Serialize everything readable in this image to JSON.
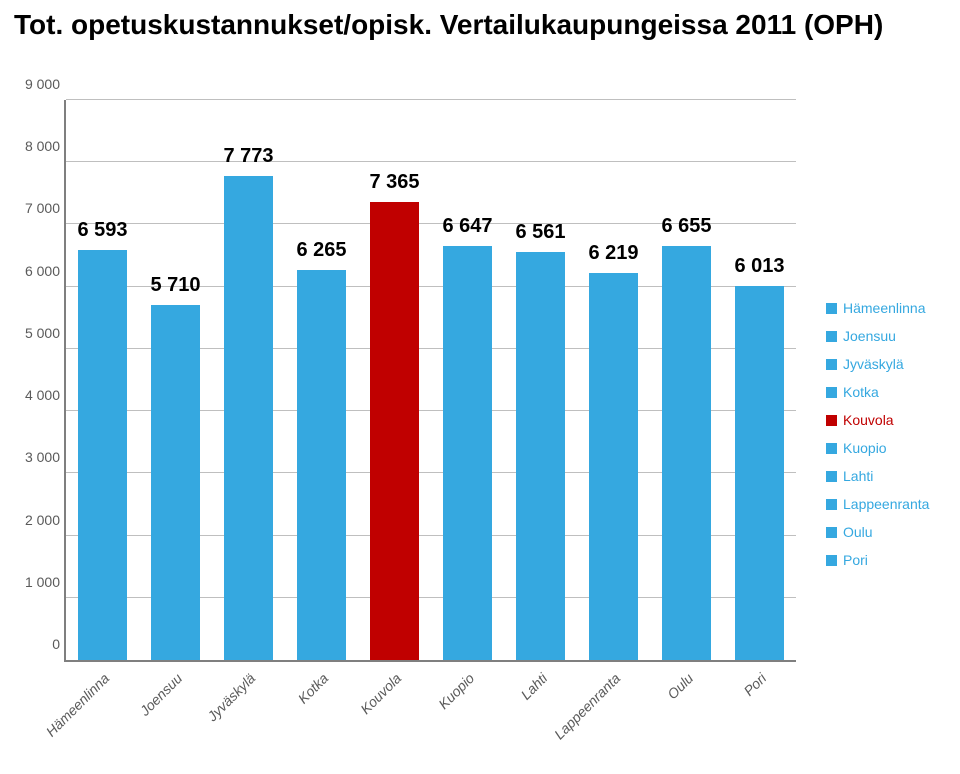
{
  "title": "Tot. opetuskustannukset/opisk. Vertailukaupungeissa 2011 (OPH)",
  "chart": {
    "type": "bar",
    "background_color": "#ffffff",
    "axis_color": "#7f7f7f",
    "grid_color": "#bfbfbf",
    "text_color": "#5a5a5a",
    "title_fontsize": 28,
    "label_fontsize": 14,
    "value_label_fontsize": 20,
    "ylim": [
      0,
      9000
    ],
    "ytick_step": 1000,
    "y_ticks": [
      "0",
      "1 000",
      "2 000",
      "3 000",
      "4 000",
      "5 000",
      "6 000",
      "7 000",
      "8 000",
      "9 000"
    ],
    "bar_width": 0.66,
    "categories": [
      "Hämeenlinna",
      "Joensuu",
      "Jyväskylä",
      "Kotka",
      "Kouvola",
      "Kuopio",
      "Lahti",
      "Lappeenranta",
      "Oulu",
      "Pori"
    ],
    "values": [
      6593,
      5710,
      7773,
      6265,
      7365,
      6647,
      6561,
      6219,
      6655,
      6013
    ],
    "value_labels": [
      "6 593",
      "5 710",
      "7 773",
      "6 265",
      "7 365",
      "6 647",
      "6 561",
      "6 219",
      "6 655",
      "6 013"
    ],
    "bar_colors": [
      "#35a8e0",
      "#35a8e0",
      "#35a8e0",
      "#35a8e0",
      "#c00000",
      "#35a8e0",
      "#35a8e0",
      "#35a8e0",
      "#35a8e0",
      "#35a8e0"
    ],
    "legend_items": [
      {
        "label": "Hämeenlinna",
        "color": "#35a8e0"
      },
      {
        "label": "Joensuu",
        "color": "#35a8e0"
      },
      {
        "label": "Jyväskylä",
        "color": "#35a8e0"
      },
      {
        "label": "Kotka",
        "color": "#35a8e0"
      },
      {
        "label": "Kouvola",
        "color": "#c00000"
      },
      {
        "label": "Kuopio",
        "color": "#35a8e0"
      },
      {
        "label": "Lahti",
        "color": "#35a8e0"
      },
      {
        "label": "Lappeenranta",
        "color": "#35a8e0"
      },
      {
        "label": "Oulu",
        "color": "#35a8e0"
      },
      {
        "label": "Pori",
        "color": "#35a8e0"
      }
    ]
  }
}
